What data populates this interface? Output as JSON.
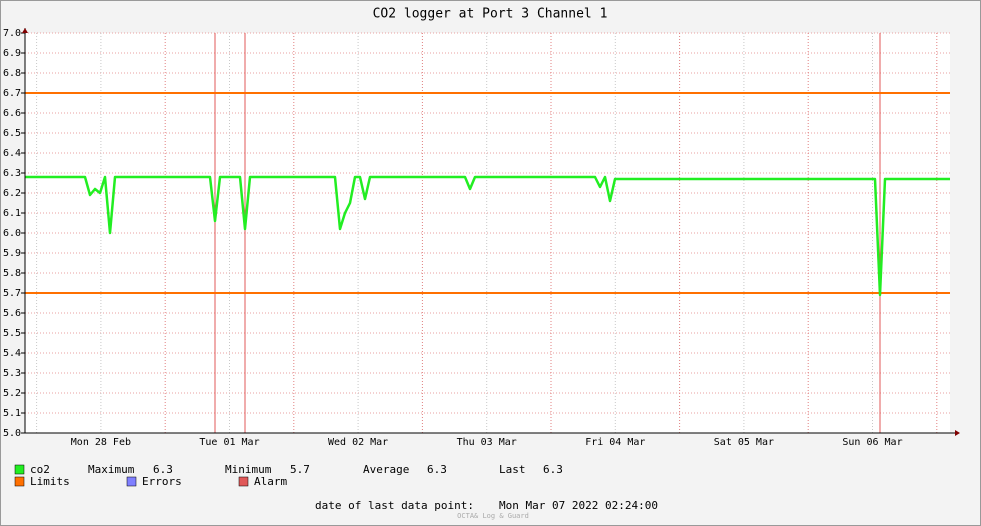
{
  "chart_data": {
    "type": "line",
    "title": "CO2 logger at Port 3 Channel 1",
    "x_labels": [
      "Mon 28 Feb",
      "Tue 01 Mar",
      "Wed 02 Mar",
      "Thu 03 Mar",
      "Fri 04 Mar",
      "Sat 05 Mar",
      "Sun 06 Mar"
    ],
    "series": [
      {
        "name": "co2",
        "color": "#22ee22",
        "values": [
          6.28,
          6.28,
          6.28,
          6.28,
          6.28,
          6.28,
          6.28,
          6.28,
          6.28,
          6.28,
          6.28,
          6.28,
          6.28,
          6.19,
          6.22,
          6.2,
          6.28,
          6.0,
          6.28,
          6.28,
          6.28,
          6.28,
          6.28,
          6.28,
          6.28,
          6.28,
          6.28,
          6.28,
          6.28,
          6.28,
          6.28,
          6.28,
          6.28,
          6.28,
          6.28,
          6.28,
          6.28,
          6.28,
          6.06,
          6.28,
          6.28,
          6.28,
          6.28,
          6.28,
          6.02,
          6.28,
          6.28,
          6.28,
          6.28,
          6.28,
          6.28,
          6.28,
          6.28,
          6.28,
          6.28,
          6.28,
          6.28,
          6.28,
          6.28,
          6.28,
          6.28,
          6.28,
          6.28,
          6.02,
          6.1,
          6.15,
          6.28,
          6.28,
          6.17,
          6.28,
          6.28,
          6.28,
          6.28,
          6.28,
          6.28,
          6.28,
          6.28,
          6.28,
          6.28,
          6.28,
          6.28,
          6.28,
          6.28,
          6.28,
          6.28,
          6.28,
          6.28,
          6.28,
          6.28,
          6.22,
          6.28,
          6.28,
          6.28,
          6.28,
          6.28,
          6.28,
          6.28,
          6.28,
          6.28,
          6.28,
          6.28,
          6.28,
          6.28,
          6.28,
          6.28,
          6.28,
          6.28,
          6.28,
          6.28,
          6.28,
          6.28,
          6.28,
          6.28,
          6.28,
          6.28,
          6.23,
          6.28,
          6.16,
          6.27,
          6.27,
          6.27,
          6.27,
          6.27,
          6.27,
          6.27,
          6.27,
          6.27,
          6.27,
          6.27,
          6.27,
          6.27,
          6.27,
          6.27,
          6.27,
          6.27,
          6.27,
          6.27,
          6.27,
          6.27,
          6.27,
          6.27,
          6.27,
          6.27,
          6.27,
          6.27,
          6.27,
          6.27,
          6.27,
          6.27,
          6.27,
          6.27,
          6.27,
          6.27,
          6.27,
          6.27,
          6.27,
          6.27,
          6.27,
          6.27,
          6.27,
          6.27,
          6.27,
          6.27,
          6.27,
          6.27,
          6.27,
          6.27,
          6.27,
          6.27,
          6.27,
          6.27,
          5.69,
          6.27,
          6.27,
          6.27,
          6.27,
          6.27,
          6.27,
          6.27,
          6.27,
          6.27,
          6.27,
          6.27,
          6.27,
          6.27,
          6.27
        ]
      }
    ],
    "limits": [
      6.7,
      5.7
    ],
    "alarms": [
      38,
      44,
      171
    ],
    "ylim": [
      5.0,
      7.0
    ],
    "yticks": [
      {
        "value": 7.0,
        "label": "7.0"
      },
      6.9,
      6.8,
      6.7,
      6.6,
      6.5,
      6.4,
      6.3,
      6.2,
      6.1,
      {
        "value": 6.0,
        "label": "6.0"
      },
      5.9,
      5.8,
      5.7,
      5.6,
      5.5,
      5.4,
      5.3,
      5.2,
      5.1,
      {
        "value": 5.0,
        "label": "5.0"
      }
    ],
    "grid": true,
    "stats": [
      {
        "label": "Maximum",
        "value": 6.3
      },
      {
        "label": "Minimum",
        "value": 5.7
      },
      {
        "label": "Average",
        "value": 6.3
      },
      {
        "label": "Last",
        "value": 6.3
      }
    ],
    "legend": [
      {
        "name": "Limits",
        "color": "#ff7000"
      },
      {
        "name": "Errors",
        "color": "#7f7fff"
      },
      {
        "name": "Alarm",
        "color": "#e05858"
      }
    ],
    "footer_label": "date of last data point:",
    "footer_value": "Mon Mar 07 2022 02:24:00",
    "watermark": "OCTA& Log & Guard"
  }
}
